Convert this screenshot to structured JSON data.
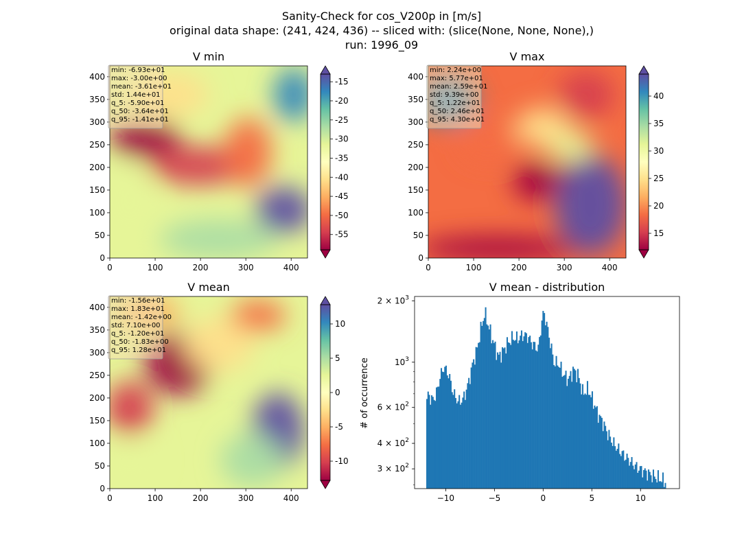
{
  "figure": {
    "title_lines": [
      "Sanity-Check for cos_V200p in [m/s]",
      "original data shape: (241, 424, 436) -- sliced with: (slice(None, None, None),)",
      "run: 1996_09"
    ]
  },
  "chart_data": [
    {
      "type": "heatmap",
      "title": "V min",
      "colormap": "Spectral",
      "x_ticks": [
        "0",
        "100",
        "200",
        "300",
        "400"
      ],
      "y_ticks": [
        "0",
        "50",
        "100",
        "150",
        "200",
        "250",
        "300",
        "350",
        "400"
      ],
      "xlim": [
        0,
        436
      ],
      "ylim": [
        0,
        424
      ],
      "colorbar": {
        "min": -59,
        "max": -13,
        "ticks": [
          "-15",
          "-20",
          "-25",
          "-30",
          "-35",
          "-40",
          "-45",
          "-50",
          "-55"
        ],
        "tick_values": [
          -15,
          -20,
          -25,
          -30,
          -35,
          -40,
          -45,
          -50,
          -55
        ],
        "extend": "both"
      },
      "stats": [
        "min: -6.93e+01",
        "max: -3.00e+00",
        "mean: -3.61e+01",
        "std: 1.44e+01",
        "q_5: -5.90e+01",
        "q_50: -3.64e+01",
        "q_95: -1.41e+01"
      ]
    },
    {
      "type": "heatmap",
      "title": "V max",
      "colormap": "Spectral",
      "x_ticks": [
        "0",
        "100",
        "200",
        "300",
        "400"
      ],
      "y_ticks": [
        "0",
        "50",
        "100",
        "150",
        "200",
        "250",
        "300",
        "350",
        "400"
      ],
      "xlim": [
        0,
        436
      ],
      "ylim": [
        0,
        424
      ],
      "colorbar": {
        "min": 12,
        "max": 44,
        "ticks": [
          "15",
          "20",
          "25",
          "30",
          "35",
          "40"
        ],
        "tick_values": [
          15,
          20,
          25,
          30,
          35,
          40
        ],
        "extend": "both"
      },
      "stats": [
        "min: 2.24e+00",
        "max: 5.77e+01",
        "mean: 2.59e+01",
        "std: 9.39e+00",
        "q_5: 1.22e+01",
        "q_50: 2.46e+01",
        "q_95: 4.30e+01"
      ]
    },
    {
      "type": "heatmap",
      "title": "V mean",
      "colormap": "Spectral",
      "x_ticks": [
        "0",
        "100",
        "200",
        "300",
        "400"
      ],
      "y_ticks": [
        "0",
        "50",
        "100",
        "150",
        "200",
        "250",
        "300",
        "350",
        "400"
      ],
      "xlim": [
        0,
        436
      ],
      "ylim": [
        0,
        424
      ],
      "colorbar": {
        "min": -12.8,
        "max": 12.8,
        "ticks": [
          "10",
          "5",
          "0",
          "-5",
          "-10"
        ],
        "tick_values": [
          10,
          5,
          0,
          -5,
          -10
        ],
        "extend": "both"
      },
      "stats": [
        "min: -1.56e+01",
        "max: 1.83e+01",
        "mean: -1.42e+00",
        "std: 7.10e+00",
        "q_5: -1.20e+01",
        "q_50: -1.83e+00",
        "q_95: 1.28e+01"
      ]
    },
    {
      "type": "bar",
      "title": "V mean - distribution",
      "ylabel": "# of occurrence",
      "y_scale": "log",
      "xlim": [
        -13.2,
        14.0
      ],
      "ylim": [
        240,
        2100
      ],
      "x_ticks": [
        "−10",
        "−5",
        "0",
        "5",
        "10"
      ],
      "x_tick_values": [
        -10,
        -5,
        0,
        5,
        10
      ],
      "y_tick_labels": [
        {
          "value": 2000,
          "base": "2",
          "mant": "3"
        },
        {
          "value": 1000,
          "base": "10",
          "mant": "3"
        },
        {
          "value": 600,
          "base": "6",
          "mant": "2"
        },
        {
          "value": 400,
          "base": "4",
          "mant": "2"
        },
        {
          "value": 300,
          "base": "3",
          "mant": "2"
        }
      ],
      "color": "#1f77b4",
      "anchors": [
        [
          -12.0,
          620
        ],
        [
          -11.8,
          700
        ],
        [
          -11.4,
          650
        ],
        [
          -11.0,
          690
        ],
        [
          -10.6,
          840
        ],
        [
          -10.2,
          950
        ],
        [
          -9.7,
          870
        ],
        [
          -9.2,
          700
        ],
        [
          -8.7,
          640
        ],
        [
          -8.2,
          660
        ],
        [
          -7.7,
          780
        ],
        [
          -7.2,
          1000
        ],
        [
          -6.8,
          1150
        ],
        [
          -6.4,
          1450
        ],
        [
          -6.0,
          1750
        ],
        [
          -5.6,
          1500
        ],
        [
          -5.1,
          1250
        ],
        [
          -4.6,
          1060
        ],
        [
          -4.2,
          1120
        ],
        [
          -3.7,
          1230
        ],
        [
          -3.1,
          1320
        ],
        [
          -2.6,
          1300
        ],
        [
          -2.1,
          1360
        ],
        [
          -1.6,
          1340
        ],
        [
          -1.1,
          1230
        ],
        [
          -0.5,
          1160
        ],
        [
          -0.1,
          1650
        ],
        [
          0.1,
          1750
        ],
        [
          0.6,
          1350
        ],
        [
          1.1,
          1000
        ],
        [
          1.6,
          980
        ],
        [
          2.1,
          870
        ],
        [
          2.6,
          820
        ],
        [
          3.1,
          920
        ],
        [
          3.6,
          860
        ],
        [
          4.1,
          700
        ],
        [
          4.6,
          740
        ],
        [
          5.1,
          650
        ],
        [
          5.6,
          560
        ],
        [
          6.1,
          510
        ],
        [
          6.6,
          450
        ],
        [
          7.2,
          400
        ],
        [
          7.8,
          370
        ],
        [
          8.4,
          345
        ],
        [
          9.0,
          325
        ],
        [
          9.6,
          305
        ],
        [
          10.2,
          295
        ],
        [
          10.8,
          285
        ],
        [
          11.4,
          275
        ],
        [
          12.0,
          268
        ],
        [
          12.6,
          258
        ]
      ]
    }
  ]
}
